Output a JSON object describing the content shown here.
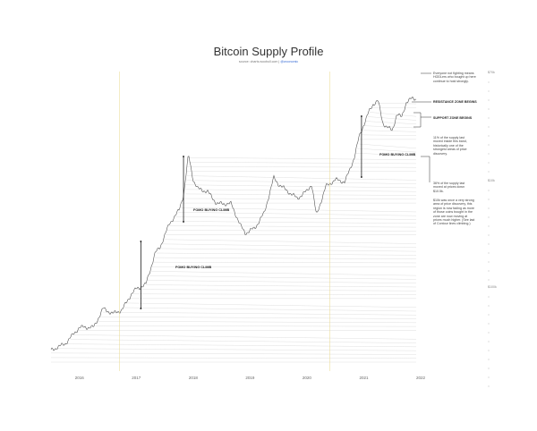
{
  "chart_data": {
    "type": "line",
    "title": "Bitcoin Supply Profile",
    "subtitle": "source: charts.woobull.com",
    "subtitle_handle": "@woonomic",
    "x_ticks": [
      "2016",
      "2017",
      "2018",
      "2019",
      "2020",
      "2021",
      "2022"
    ],
    "y_ticks_upper": [
      "$70k",
      "$10k"
    ],
    "y_ticks_lower": [
      "$100k"
    ],
    "series": [
      {
        "values": [
          [
            "2015-07",
            260
          ],
          [
            "2015-10",
            300
          ],
          [
            "2016-01",
            430
          ],
          [
            "2016-04",
            430
          ],
          [
            "2016-06",
            650
          ],
          [
            "2016-08",
            580
          ],
          [
            "2016-10",
            630
          ],
          [
            "2016-12",
            900
          ],
          [
            "2017-01",
            1000
          ],
          [
            "2017-03",
            1100
          ],
          [
            "2017-05",
            2200
          ],
          [
            "2017-06",
            2500
          ],
          [
            "2017-08",
            4200
          ],
          [
            "2017-10",
            5600
          ],
          [
            "2017-11",
            8000
          ],
          [
            "2017-12",
            19000
          ],
          [
            "2018-01",
            11000
          ],
          [
            "2018-02",
            9000
          ],
          [
            "2018-04",
            8500
          ],
          [
            "2018-06",
            6500
          ],
          [
            "2018-09",
            6500
          ],
          [
            "2018-11",
            4000
          ],
          [
            "2018-12",
            3400
          ],
          [
            "2019-02",
            3800
          ],
          [
            "2019-04",
            5300
          ],
          [
            "2019-06",
            11500
          ],
          [
            "2019-07",
            10000
          ],
          [
            "2019-09",
            8500
          ],
          [
            "2019-11",
            7300
          ],
          [
            "2020-01",
            8600
          ],
          [
            "2020-02",
            10000
          ],
          [
            "2020-03",
            5000
          ],
          [
            "2020-05",
            9500
          ],
          [
            "2020-07",
            11000
          ],
          [
            "2020-09",
            10500
          ],
          [
            "2020-10",
            13500
          ],
          [
            "2020-11",
            18000
          ],
          [
            "2020-12",
            28000
          ],
          [
            "2021-01",
            37000
          ],
          [
            "2021-02",
            48000
          ],
          [
            "2021-03",
            58000
          ],
          [
            "2021-04",
            63000
          ],
          [
            "2021-05",
            38000
          ],
          [
            "2021-06",
            35000
          ],
          [
            "2021-07",
            32000
          ],
          [
            "2021-08",
            47000
          ],
          [
            "2021-09",
            43000
          ],
          [
            "2021-10",
            61000
          ],
          [
            "2021-11",
            65000
          ]
        ]
      }
    ],
    "annotations": [
      {
        "text": "FOMO BUYING CLIMB",
        "date": "2017-02"
      },
      {
        "text": "FOMO BUYING CLIMB",
        "date": "2017-10"
      },
      {
        "text": "FOMO BUYING CLIMB",
        "date": "2020-12"
      },
      {
        "text": "RESISTANCE ZONE BEGINS"
      },
      {
        "text": "SUPPORT ZONE BEGINS"
      }
    ],
    "side_notes": [
      "Everyone not fighting means HODLers who bought up here continue to hold strongly.",
      "11% of the supply last moved inside this band, historically one of the strongest areas of price discovery.",
      "36% of the supply last moved at prices down $10.5k.",
      "$10k was once a very strong area of price discovery, this region is now fading as more of those coins bought in the zone are now moving at prices much higher. (See last of Contour lines climbing.)"
    ],
    "grid": false,
    "legend": "none"
  }
}
